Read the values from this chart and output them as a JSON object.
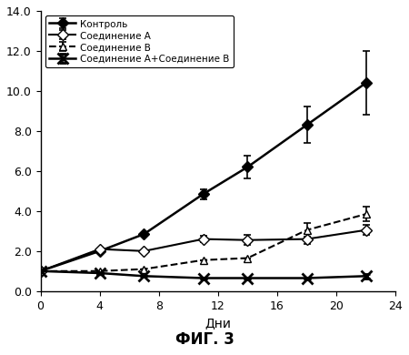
{
  "x": [
    0,
    4,
    7,
    11,
    14,
    18,
    22
  ],
  "control": [
    1.0,
    2.0,
    2.85,
    4.85,
    6.2,
    8.3,
    10.4
  ],
  "control_err": [
    0.0,
    0.0,
    0.0,
    0.25,
    0.55,
    0.9,
    1.6
  ],
  "compound_a": [
    1.0,
    2.1,
    2.0,
    2.6,
    2.55,
    2.6,
    3.05
  ],
  "compound_a_err": [
    0.0,
    0.0,
    0.0,
    0.15,
    0.25,
    0.25,
    0.25
  ],
  "compound_b": [
    1.0,
    1.0,
    1.1,
    1.55,
    1.65,
    3.05,
    3.85
  ],
  "compound_b_err": [
    0.0,
    0.0,
    0.0,
    0.0,
    0.0,
    0.35,
    0.35
  ],
  "combo": [
    1.0,
    0.9,
    0.75,
    0.65,
    0.65,
    0.65,
    0.75
  ],
  "combo_err": [
    0.0,
    0.0,
    0.0,
    0.0,
    0.0,
    0.0,
    0.1
  ],
  "xlabel": "Дни",
  "ylim": [
    0,
    14.0
  ],
  "xlim": [
    0,
    24
  ],
  "yticks": [
    0.0,
    2.0,
    4.0,
    6.0,
    8.0,
    10.0,
    12.0,
    14.0
  ],
  "ytick_labels": [
    "0.0",
    "2.0",
    "4.0",
    "6.0",
    "8.0",
    "10.0",
    "12.0",
    "14.0"
  ],
  "xticks": [
    0,
    4,
    8,
    12,
    16,
    20,
    24
  ],
  "legend_labels": [
    "Контроль",
    "Соединение А",
    "Соединение В",
    "Соединение А+Соединение В"
  ],
  "fig_title": "ФИГ. 3",
  "bg_color": "#ffffff"
}
